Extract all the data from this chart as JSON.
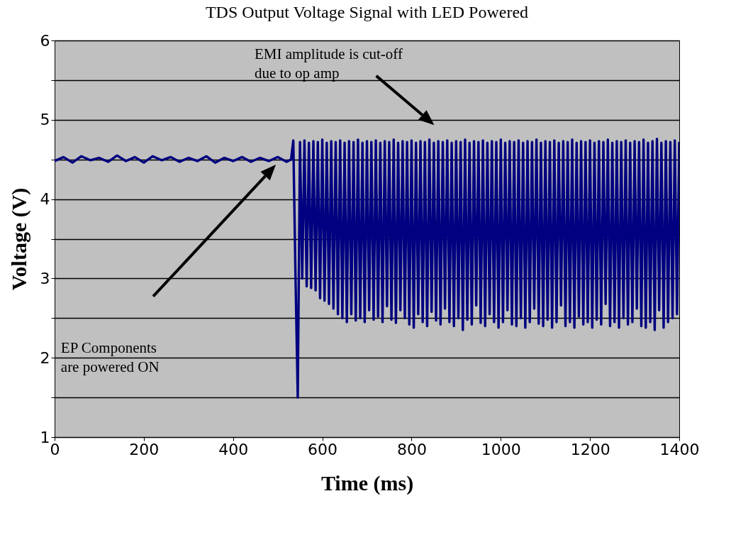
{
  "chart_data": {
    "type": "line",
    "title": "TDS Output Voltage Signal with LED Powered",
    "xlabel": "Time (ms)",
    "ylabel": "Voltage (V)",
    "xlim": [
      0,
      1400
    ],
    "xticks": [
      0,
      200,
      400,
      600,
      800,
      1000,
      1200,
      1400
    ],
    "ylim": [
      1,
      6
    ],
    "yticks": [
      1,
      {
        "value": 1.5,
        "label": null
      },
      2,
      {
        "value": 2.5,
        "label": null
      },
      3,
      {
        "value": 3.5,
        "label": null
      },
      4,
      {
        "value": 4.5,
        "label": null
      },
      5,
      {
        "value": 5.5,
        "label": null
      },
      6
    ],
    "grid": "y",
    "annotations": [
      "EMI amplitude is cut-off due to op amp",
      "EP Components are powered ON"
    ],
    "x": [
      0,
      20,
      40,
      60,
      80,
      100,
      120,
      140,
      160,
      180,
      200,
      220,
      240,
      260,
      280,
      300,
      320,
      340,
      360,
      380,
      400,
      420,
      440,
      460,
      480,
      500,
      520,
      530,
      535,
      540,
      545,
      550,
      555,
      560,
      565,
      570,
      575,
      580,
      585,
      590,
      595,
      600,
      605,
      610,
      615,
      620,
      625,
      630,
      635,
      640,
      645,
      650,
      655,
      660,
      665,
      670,
      675,
      680,
      685,
      690,
      695,
      700,
      705,
      710,
      715,
      720,
      725,
      730,
      735,
      740,
      745,
      750,
      755,
      760,
      765,
      770,
      775,
      780,
      785,
      790,
      795,
      800,
      805,
      810,
      815,
      820,
      825,
      830,
      835,
      840,
      845,
      850,
      855,
      860,
      865,
      870,
      875,
      880,
      885,
      890,
      895,
      900,
      905,
      910,
      915,
      920,
      925,
      930,
      935,
      940,
      945,
      950,
      955,
      960,
      965,
      970,
      975,
      980,
      985,
      990,
      995,
      1000,
      1005,
      1010,
      1015,
      1020,
      1025,
      1030,
      1035,
      1040,
      1045,
      1050,
      1055,
      1060,
      1065,
      1070,
      1075,
      1080,
      1085,
      1090,
      1095,
      1100,
      1105,
      1110,
      1115,
      1120,
      1125,
      1130,
      1135,
      1140,
      1145,
      1150,
      1155,
      1160,
      1165,
      1170,
      1175,
      1180,
      1185,
      1190,
      1195,
      1200,
      1205,
      1210,
      1215,
      1220,
      1225,
      1230,
      1235,
      1240,
      1245,
      1250,
      1255,
      1260,
      1265,
      1270,
      1275,
      1280,
      1285,
      1290,
      1295,
      1300,
      1305,
      1310,
      1315,
      1320,
      1325,
      1330,
      1335,
      1340,
      1345,
      1350,
      1355,
      1360,
      1365,
      1370,
      1375,
      1380,
      1385,
      1390,
      1395,
      1400
    ],
    "series": [
      {
        "color": "#000080",
        "values": [
          4.48,
          4.53,
          4.46,
          4.54,
          4.49,
          4.52,
          4.47,
          4.55,
          4.48,
          4.53,
          4.46,
          4.54,
          4.49,
          4.53,
          4.47,
          4.52,
          4.48,
          4.54,
          4.46,
          4.52,
          4.48,
          4.53,
          4.47,
          4.52,
          4.48,
          4.53,
          4.47,
          4.5,
          4.74,
          3.0,
          1.5,
          4.72,
          3.0,
          4.74,
          2.9,
          4.71,
          2.88,
          4.73,
          2.85,
          4.72,
          2.75,
          4.75,
          2.72,
          4.71,
          2.68,
          4.73,
          2.62,
          4.72,
          2.55,
          4.74,
          2.5,
          4.71,
          2.45,
          4.73,
          2.55,
          4.72,
          2.47,
          4.75,
          2.5,
          4.71,
          2.45,
          4.73,
          2.6,
          4.72,
          2.48,
          4.74,
          2.52,
          4.71,
          2.45,
          4.73,
          2.65,
          4.72,
          2.48,
          4.75,
          2.44,
          4.71,
          2.6,
          4.73,
          2.5,
          4.72,
          2.42,
          4.74,
          2.38,
          4.71,
          2.55,
          4.73,
          2.45,
          4.72,
          2.4,
          4.75,
          2.58,
          4.71,
          2.47,
          4.73,
          2.42,
          4.72,
          2.62,
          4.74,
          2.45,
          4.71,
          2.4,
          4.73,
          2.5,
          4.72,
          2.35,
          4.75,
          2.48,
          4.71,
          2.42,
          4.73,
          2.66,
          4.72,
          2.44,
          4.74,
          2.4,
          4.71,
          2.55,
          4.73,
          2.45,
          4.72,
          2.38,
          4.75,
          2.45,
          4.71,
          2.6,
          4.73,
          2.42,
          4.72,
          2.4,
          4.74,
          2.5,
          4.71,
          2.38,
          4.73,
          2.45,
          4.72,
          2.62,
          4.75,
          2.43,
          4.71,
          2.4,
          4.73,
          2.48,
          4.72,
          2.38,
          4.74,
          2.45,
          4.71,
          2.66,
          4.73,
          2.4,
          4.72,
          2.45,
          4.75,
          2.38,
          4.71,
          2.52,
          4.73,
          2.42,
          4.72,
          2.45,
          4.74,
          2.38,
          4.71,
          2.48,
          4.73,
          2.42,
          4.72,
          2.68,
          4.75,
          2.4,
          4.71,
          2.45,
          4.73,
          2.38,
          4.72,
          2.5,
          4.74,
          2.42,
          4.71,
          2.45,
          4.73,
          2.62,
          4.72,
          2.4,
          4.75,
          2.38,
          4.71,
          2.45,
          4.73,
          2.35,
          4.76,
          2.6,
          4.71,
          2.38,
          4.73,
          2.45,
          4.72,
          2.5,
          4.74,
          2.55,
          4.72
        ]
      }
    ]
  }
}
